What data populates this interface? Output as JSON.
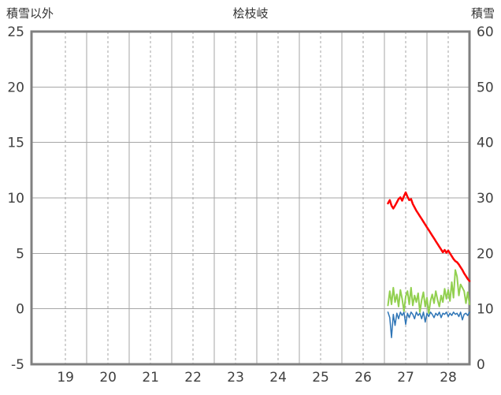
{
  "header": {
    "left_axis_label": "積雪以外",
    "title": "桧枝岐",
    "right_axis_label": "積雪"
  },
  "chart_data": {
    "type": "line",
    "title": "桧枝岐",
    "grid": true,
    "legend": "none",
    "colors": {
      "grid": "#a6a6a6",
      "frame": "#808080",
      "text": "#404040",
      "background": "#ffffff"
    },
    "left_axis": {
      "label": "積雪以外",
      "min": -5,
      "max": 25,
      "ticks": [
        -5,
        0,
        5,
        10,
        15,
        20,
        25
      ]
    },
    "right_axis": {
      "label": "積雪",
      "min": 0,
      "max": 60,
      "ticks": [
        0,
        10,
        20,
        30,
        40,
        50,
        60
      ]
    },
    "x_axis": {
      "min": 18.2,
      "max": 28.5,
      "tick_labels": [
        "19",
        "20",
        "21",
        "22",
        "23",
        "24",
        "25",
        "26",
        "27",
        "28"
      ],
      "tick_positions": [
        19,
        20,
        21,
        22,
        23,
        24,
        25,
        26,
        27,
        28
      ],
      "solid_grid_positions": [
        19.5,
        20.5,
        21.5,
        22.5,
        23.5,
        24.5,
        25.5,
        26.5,
        27.5
      ]
    },
    "series": [
      {
        "name": "blue-line",
        "axis": "left",
        "color": "#2e75b6",
        "width": 1.5,
        "x_start": 26.583,
        "x_step": 0.0416667,
        "values": [
          -0.3,
          -0.8,
          -2.6,
          -0.5,
          -1.5,
          -0.4,
          -0.9,
          -0.3,
          -0.6,
          -0.3,
          -1.4,
          -0.4,
          -0.8,
          -0.3,
          -0.5,
          -0.9,
          -0.3,
          -0.6,
          -0.4,
          -0.9,
          -0.3,
          -1.2,
          -0.4,
          -0.7,
          -0.3,
          -0.5,
          -0.8,
          -0.4,
          -0.6,
          -0.3,
          -0.8,
          -0.4,
          -0.5,
          -0.3,
          -0.7,
          -0.4,
          -0.6,
          -0.3,
          -0.5,
          -0.4,
          -0.7,
          -0.3,
          -1.0,
          -0.5,
          -0.4,
          -0.6,
          -0.3
        ]
      },
      {
        "name": "green-line",
        "axis": "left",
        "color": "#92d050",
        "width": 2,
        "x_start": 26.583,
        "x_step": 0.0416667,
        "values": [
          0.3,
          1.6,
          0.4,
          1.9,
          0.6,
          1.3,
          0.2,
          1.7,
          0.9,
          -0.2,
          1.1,
          1.6,
          0.4,
          1.9,
          0.3,
          1.2,
          0.6,
          1.4,
          -0.3,
          0.8,
          1.5,
          0.2,
          1.0,
          -0.4,
          0.7,
          1.3,
          0.5,
          1.6,
          0.8,
          0.2,
          1.2,
          0.6,
          1.8,
          0.9,
          1.7,
          0.7,
          2.4,
          1.0,
          3.5,
          2.9,
          1.2,
          2.2,
          1.9,
          1.6,
          0.5,
          1.5,
          0.4
        ]
      },
      {
        "name": "red-line-snow-depth",
        "axis": "right",
        "color": "#ff0000",
        "width": 2.5,
        "x_start": 26.583,
        "x_step": 0.0416667,
        "values": [
          29.0,
          29.6,
          28.6,
          28.1,
          28.6,
          29.2,
          29.8,
          30.1,
          29.5,
          30.3,
          31.0,
          30.2,
          29.6,
          29.8,
          28.9,
          28.3,
          27.7,
          27.2,
          26.7,
          26.2,
          25.7,
          25.2,
          24.7,
          24.2,
          23.7,
          23.2,
          22.7,
          22.2,
          21.7,
          21.2,
          20.7,
          20.2,
          20.6,
          20.1,
          20.5,
          20.0,
          19.5,
          19.0,
          18.6,
          18.4,
          18.0,
          17.5,
          17.0,
          16.4,
          15.9,
          15.4,
          15.0
        ]
      }
    ]
  }
}
